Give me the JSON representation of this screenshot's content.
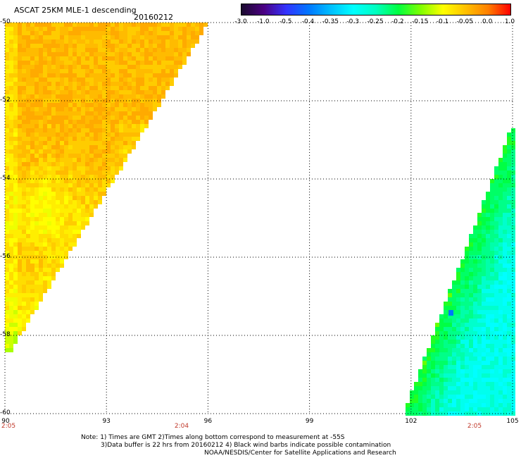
{
  "header": {
    "title": "ASCAT 25KM MLE-1 descending",
    "date": "20160212"
  },
  "colorbar": {
    "labels": [
      "-3.0",
      "-1.0",
      "-0.5",
      "-0.4",
      "-0.35",
      "-0.3",
      "-0.25",
      "-0.2",
      "-0.15",
      "-0.1",
      "-0.05",
      "0.0",
      "1.0"
    ],
    "colors": [
      "#1a0a2e",
      "#4b0082",
      "#3333ff",
      "#0077ff",
      "#00c0ff",
      "#00ffff",
      "#00ffc0",
      "#00ff40",
      "#80ff00",
      "#ffff00",
      "#ffc000",
      "#ff8000",
      "#ff0000"
    ]
  },
  "axes": {
    "lat_labels": [
      "-50",
      "-52",
      "-54",
      "-56",
      "-58",
      "-60"
    ],
    "lon_labels": [
      "90",
      "93",
      "96",
      "99",
      "102",
      "105"
    ],
    "time_labels": [
      "2:05",
      "2:04",
      "2:05"
    ]
  },
  "notes": {
    "line1": "Note: 1) Times are GMT 2)Times along bottom correspond to measurement at -55S",
    "line2": "3)Data buffer is 22 hrs from 20160212 4) Black wind barbs indicate possible contamination",
    "line3": "NOAA/NESDIS/Center for Satellite Applications and Research"
  }
}
